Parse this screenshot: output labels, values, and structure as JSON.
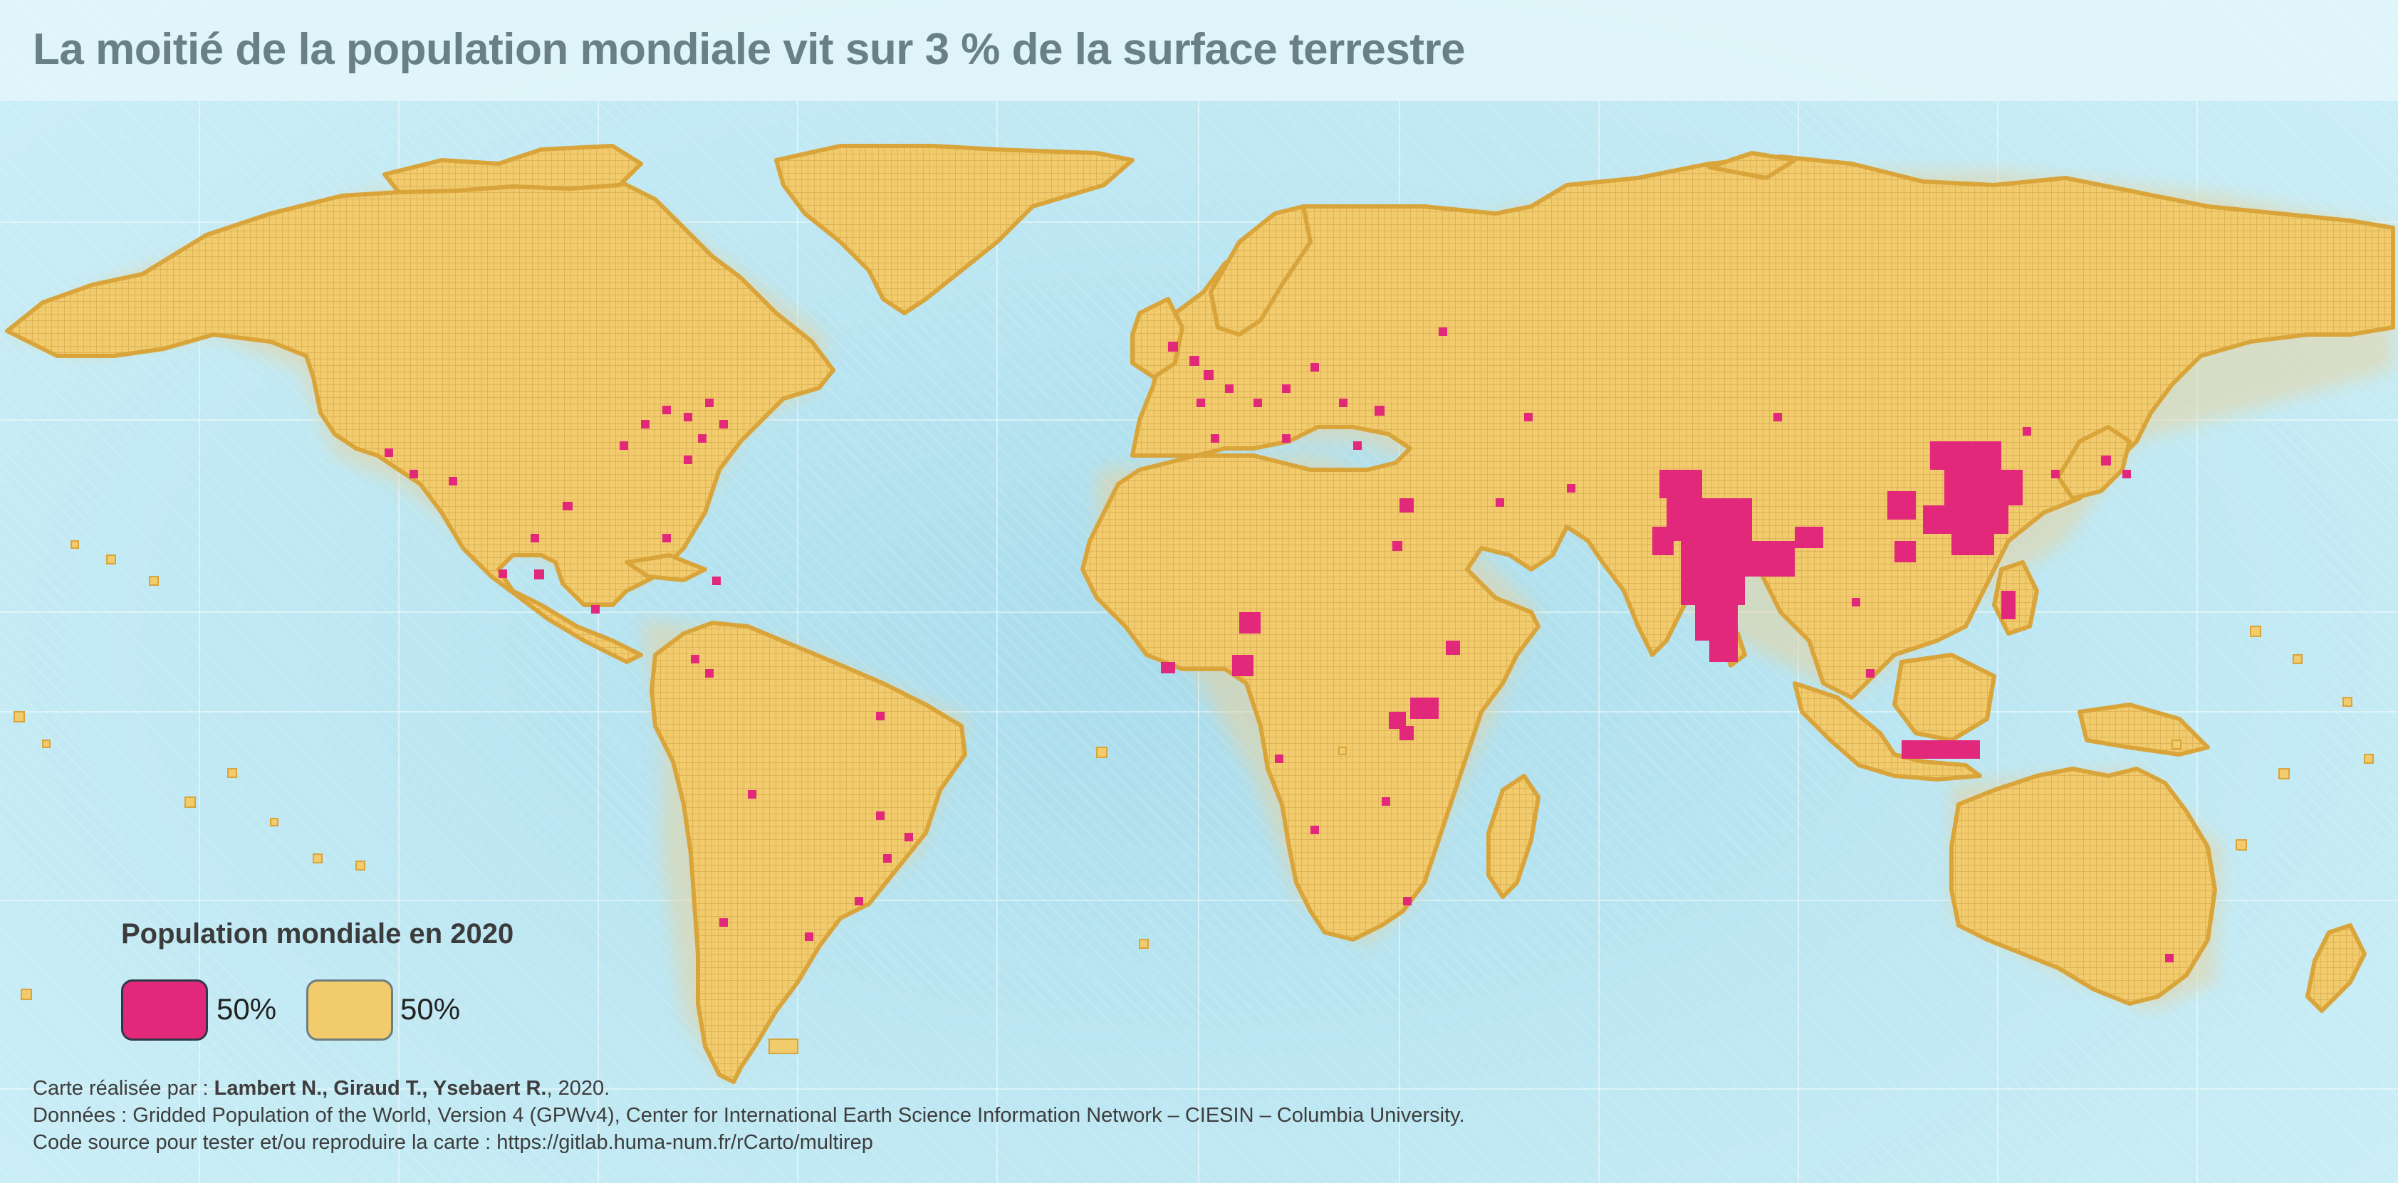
{
  "title": "La moitié de la population mondiale vit sur 3 % de la surface terrestre",
  "legend": {
    "title": "Population mondiale en 2020",
    "items": [
      {
        "label": "50%",
        "color": "#e2287a"
      },
      {
        "label": "50%",
        "color": "#f1cb6c"
      }
    ]
  },
  "credits": {
    "line1_prefix": "Carte réalisée par : ",
    "authors": "Lambert N., Giraud T., Ysebaert R.",
    "line1_suffix": ", 2020.",
    "line2": "Données : Gridded Population of the World, Version 4 (GPWv4), Center for International Earth Science Information Network – CIESIN – Columbia University.",
    "line3": "Code source pour tester et/ou reproduire la carte : https://gitlab.huma-num.fr/rCarto/multirep"
  },
  "colors": {
    "land": "#f1cb6c",
    "land_stroke": "#d9a43a",
    "dense": "#e2287a",
    "ocean": "#c3e9f3",
    "graticule": "#ffffff"
  }
}
